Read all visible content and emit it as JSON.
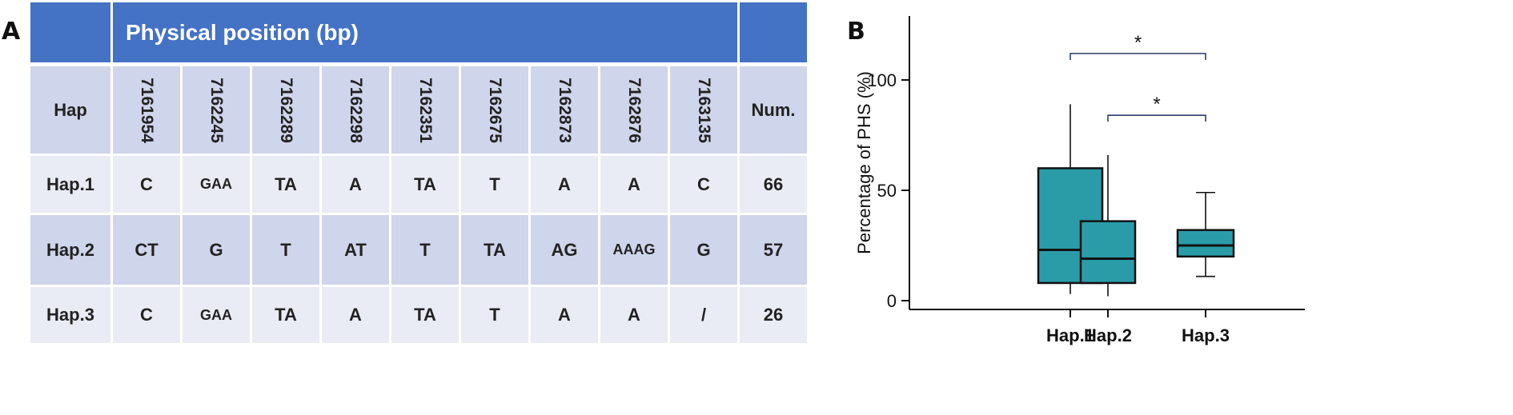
{
  "panel_labels": {
    "a": "A",
    "b": "B"
  },
  "table": {
    "header_title": "Physical position (bp)",
    "hap_label": "Hap",
    "num_label": "Num.",
    "positions": [
      "7161954",
      "7162245",
      "7162289",
      "7162298",
      "7162351",
      "7162675",
      "7162873",
      "7162876",
      "7163135"
    ],
    "rows": [
      {
        "hap": "Hap.1",
        "alleles": [
          "C",
          "GAA",
          "TA",
          "A",
          "TA",
          "T",
          "A",
          "A",
          "C"
        ],
        "num": "66"
      },
      {
        "hap": "Hap.2",
        "alleles": [
          "CT",
          "G",
          "T",
          "AT",
          "T",
          "TA",
          "AG",
          "AAAG",
          "G"
        ],
        "num": "57"
      },
      {
        "hap": "Hap.3",
        "alleles": [
          "C",
          "GAA",
          "TA",
          "A",
          "TA",
          "T",
          "A",
          "A",
          "/"
        ],
        "num": "26"
      }
    ]
  },
  "chart_data": {
    "type": "box",
    "title": "",
    "xlabel": "",
    "ylabel": "Percentage of PHS (%)",
    "ylim": [
      0,
      130
    ],
    "yticks": [
      "0",
      "50",
      "100"
    ],
    "categories": [
      "Hap.1",
      "Hap.2",
      "Hap.3"
    ],
    "boxes": [
      {
        "min": 3,
        "q1": 8,
        "median": 23,
        "q3": 60,
        "max": 89
      },
      {
        "min": 2,
        "q1": 8,
        "median": 19,
        "q3": 36,
        "max": 66
      },
      {
        "min": 11,
        "q1": 20,
        "median": 25,
        "q3": 32,
        "max": 49
      }
    ],
    "colors": {
      "box_fill": "#2a9ca8",
      "box_stroke": "#111111",
      "bracket": "#2f3f6b"
    },
    "significance": [
      {
        "from": 0,
        "to": 2,
        "label": "*",
        "y": 112
      },
      {
        "from": 1,
        "to": 2,
        "label": "*",
        "y": 84
      }
    ]
  }
}
